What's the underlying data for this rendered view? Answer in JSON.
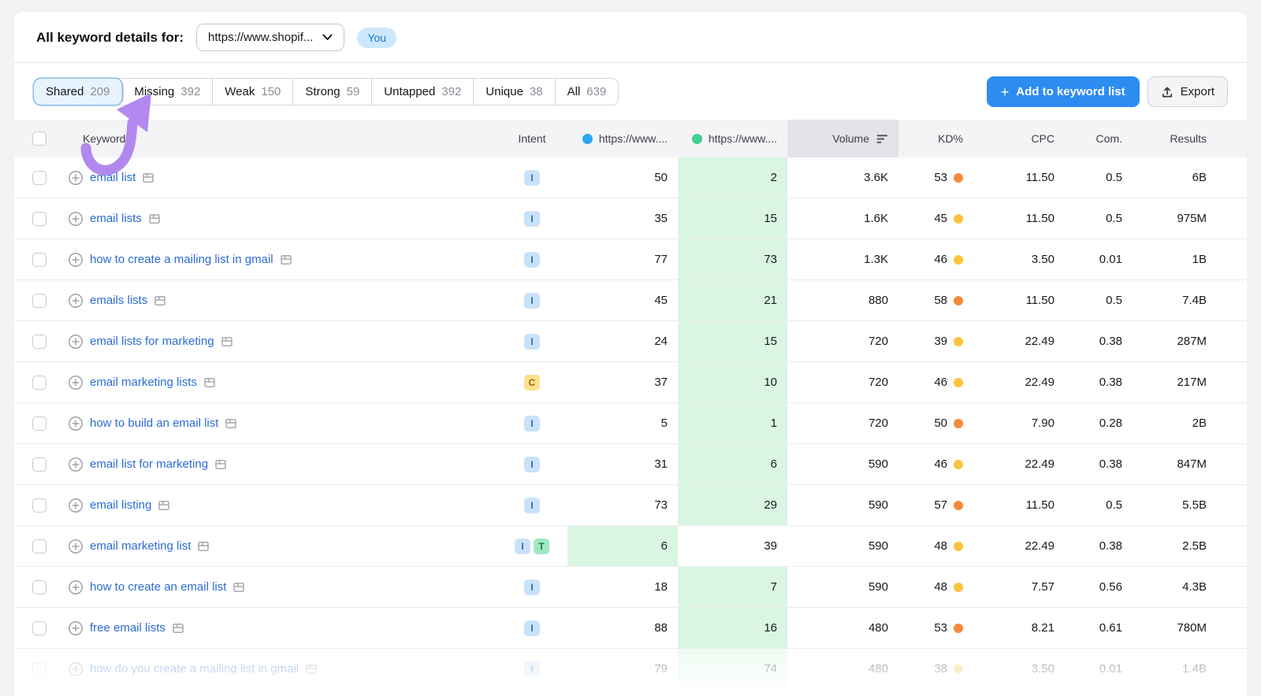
{
  "header": {
    "title": "All keyword details for:",
    "domain_dropdown_value": "https://www.shopif...",
    "you_badge": "You"
  },
  "tabs": [
    {
      "label": "Shared",
      "count": "209",
      "active": true
    },
    {
      "label": "Missing",
      "count": "392",
      "active": false
    },
    {
      "label": "Weak",
      "count": "150",
      "active": false
    },
    {
      "label": "Strong",
      "count": "59",
      "active": false
    },
    {
      "label": "Untapped",
      "count": "392",
      "active": false
    },
    {
      "label": "Unique",
      "count": "38",
      "active": false
    },
    {
      "label": "All",
      "count": "639",
      "active": false
    }
  ],
  "actions": {
    "add_to_list_label": "Add to keyword list",
    "export_label": "Export"
  },
  "table": {
    "columns": {
      "keyword": "Keyword",
      "intent": "Intent",
      "you_domain": "https://www....",
      "competitor_domain": "https://www....",
      "volume": "Volume",
      "kd": "KD%",
      "cpc": "CPC",
      "com": "Com.",
      "results": "Results"
    },
    "rows": [
      {
        "keyword": "email list",
        "intents": [
          "I"
        ],
        "you": "50",
        "comp": "2",
        "highlight": "comp",
        "volume": "3.6K",
        "kd": "53",
        "kd_color": "orange",
        "cpc": "11.50",
        "com": "0.5",
        "results": "6B",
        "faded": false
      },
      {
        "keyword": "email lists",
        "intents": [
          "I"
        ],
        "you": "35",
        "comp": "15",
        "highlight": "comp",
        "volume": "1.6K",
        "kd": "45",
        "kd_color": "yellow",
        "cpc": "11.50",
        "com": "0.5",
        "results": "975M",
        "faded": false
      },
      {
        "keyword": "how to create a mailing list in gmail",
        "intents": [
          "I"
        ],
        "you": "77",
        "comp": "73",
        "highlight": "comp",
        "volume": "1.3K",
        "kd": "46",
        "kd_color": "yellow",
        "cpc": "3.50",
        "com": "0.01",
        "results": "1B",
        "faded": false
      },
      {
        "keyword": "emails lists",
        "intents": [
          "I"
        ],
        "you": "45",
        "comp": "21",
        "highlight": "comp",
        "volume": "880",
        "kd": "58",
        "kd_color": "orange",
        "cpc": "11.50",
        "com": "0.5",
        "results": "7.4B",
        "faded": false
      },
      {
        "keyword": "email lists for marketing",
        "intents": [
          "I"
        ],
        "you": "24",
        "comp": "15",
        "highlight": "comp",
        "volume": "720",
        "kd": "39",
        "kd_color": "yellow",
        "cpc": "22.49",
        "com": "0.38",
        "results": "287M",
        "faded": false
      },
      {
        "keyword": "email marketing lists",
        "intents": [
          "C"
        ],
        "you": "37",
        "comp": "10",
        "highlight": "comp",
        "volume": "720",
        "kd": "46",
        "kd_color": "yellow",
        "cpc": "22.49",
        "com": "0.38",
        "results": "217M",
        "faded": false
      },
      {
        "keyword": "how to build an email list",
        "intents": [
          "I"
        ],
        "you": "5",
        "comp": "1",
        "highlight": "comp",
        "volume": "720",
        "kd": "50",
        "kd_color": "orange",
        "cpc": "7.90",
        "com": "0.28",
        "results": "2B",
        "faded": false
      },
      {
        "keyword": "email list for marketing",
        "intents": [
          "I"
        ],
        "you": "31",
        "comp": "6",
        "highlight": "comp",
        "volume": "590",
        "kd": "46",
        "kd_color": "yellow",
        "cpc": "22.49",
        "com": "0.38",
        "results": "847M",
        "faded": false
      },
      {
        "keyword": "email listing",
        "intents": [
          "I"
        ],
        "you": "73",
        "comp": "29",
        "highlight": "comp",
        "volume": "590",
        "kd": "57",
        "kd_color": "orange",
        "cpc": "11.50",
        "com": "0.5",
        "results": "5.5B",
        "faded": false
      },
      {
        "keyword": "email marketing list",
        "intents": [
          "I",
          "T"
        ],
        "you": "6",
        "comp": "39",
        "highlight": "you",
        "volume": "590",
        "kd": "48",
        "kd_color": "yellow",
        "cpc": "22.49",
        "com": "0.38",
        "results": "2.5B",
        "faded": false
      },
      {
        "keyword": "how to create an email list",
        "intents": [
          "I"
        ],
        "you": "18",
        "comp": "7",
        "highlight": "comp",
        "volume": "590",
        "kd": "48",
        "kd_color": "yellow",
        "cpc": "7.57",
        "com": "0.56",
        "results": "4.3B",
        "faded": false
      },
      {
        "keyword": "free email lists",
        "intents": [
          "I"
        ],
        "you": "88",
        "comp": "16",
        "highlight": "comp",
        "volume": "480",
        "kd": "53",
        "kd_color": "orange",
        "cpc": "8.21",
        "com": "0.61",
        "results": "780M",
        "faded": false
      },
      {
        "keyword": "how do you create a mailing list in gmail",
        "intents": [
          "I"
        ],
        "you": "79",
        "comp": "74",
        "highlight": "comp",
        "volume": "480",
        "kd": "38",
        "kd_color": "yellow",
        "cpc": "3.50",
        "com": "0.01",
        "results": "1.4B",
        "faded": true
      }
    ]
  },
  "colors": {
    "accent_blue": "#2d8cf0",
    "link_blue": "#2b6cd4",
    "annotation_arrow_purple": "#b288ef",
    "you_dot_blue": "#2ba7f4",
    "competitor_dot_green": "#43cf96",
    "highlight_cell_green": "#daf6e3",
    "kd_dot_orange": "#f6893b",
    "kd_dot_yellow": "#fcc33c",
    "intent_i_bg": "#c9e2f8",
    "intent_c_bg": "#fbe18e",
    "intent_t_bg": "#9fe7c2",
    "active_tab_bg": "#e7f3fd",
    "active_tab_border": "#84b9ec",
    "header_row_bg": "#f4f4f6",
    "sorted_col_header_bg": "#e3e3e9"
  }
}
